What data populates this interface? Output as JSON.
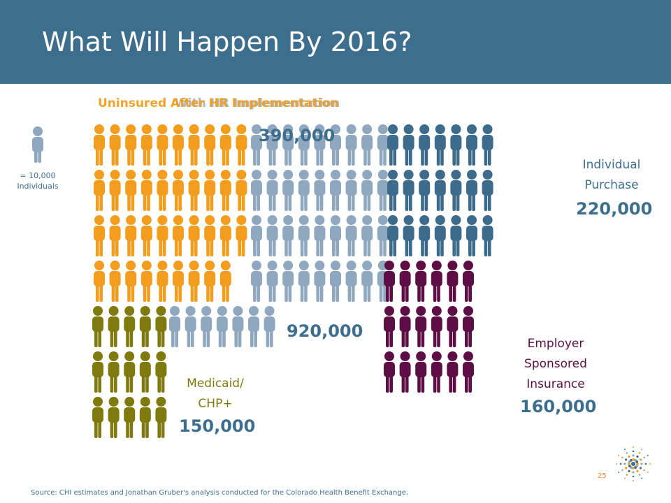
{
  "title": "What Will Happen By 2016?",
  "overlap_title_gray": "With HR Implementation",
  "overlap_title_orange": "Uninsured After HR Implementation",
  "legend": {
    "text_line1": "= 10,000",
    "text_line2": "Individuals"
  },
  "source": "Source: CHI estimates and Jonathan Gruber's analysis conducted for the Colorado Health Benefit Exchange.",
  "page_number": "25",
  "colors": {
    "uninsured": "#f29d1e",
    "gray": "#8fa8c0",
    "individual": "#3d6b8c",
    "employer": "#5d0f45",
    "medicaid": "#7f7a0e",
    "header": "#3e6e8e"
  },
  "chart_data": {
    "type": "pictograph",
    "unit": "10,000 individuals per figure",
    "categories": [
      {
        "name": "Uninsured After HR Implementation",
        "value": 390000,
        "label": "390,000"
      },
      {
        "name": "Medicaid/ CHP+",
        "value": 150000,
        "label": "150,000"
      },
      {
        "name": "Employer Sponsored Insurance",
        "value": 160000,
        "label": "160,000"
      },
      {
        "name": "Individual Purchase",
        "value": 220000,
        "label": "220,000"
      },
      {
        "name": "Uninsured",
        "value": 920000,
        "label": "920,000"
      }
    ]
  },
  "labels": {
    "individual": {
      "line1": "Individual",
      "line2": "Purchase",
      "value": "220,000"
    },
    "employer": {
      "line1": "Employer",
      "line2": "Sponsored",
      "line3": "Insurance",
      "value": "160,000"
    },
    "medicaid": {
      "line1": "Medicaid/",
      "line2": "CHP+",
      "value": "150,000"
    },
    "total_value": "920,000",
    "uninsured_value": "390,000"
  }
}
